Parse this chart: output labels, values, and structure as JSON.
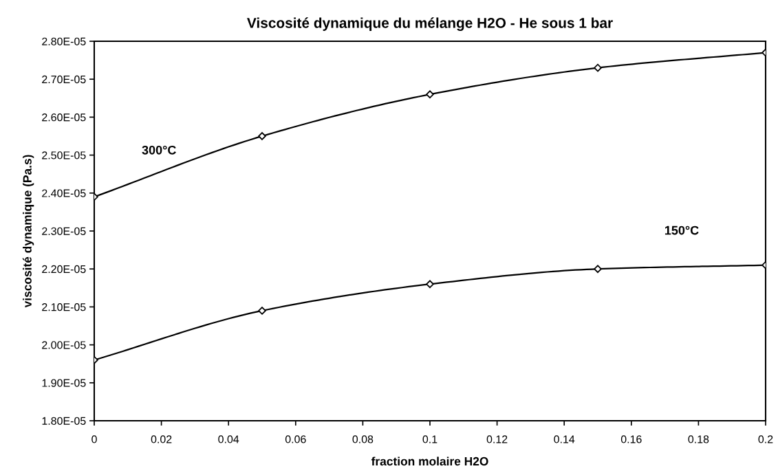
{
  "chart_data": {
    "type": "line",
    "title": "Viscosité dynamique du mélange H2O - He sous 1 bar",
    "xlabel": "fraction molaire H2O",
    "ylabel": "viscosité dynamique (Pa.s)",
    "x": [
      0,
      0.05,
      0.1,
      0.15,
      0.2
    ],
    "series": [
      {
        "name": "300°C",
        "color": "#000000",
        "values": [
          2.39e-05,
          2.55e-05,
          2.66e-05,
          2.73e-05,
          2.77e-05
        ]
      },
      {
        "name": "150°C",
        "color": "#000000",
        "values": [
          1.96e-05,
          2.09e-05,
          2.16e-05,
          2.2e-05,
          2.21e-05
        ]
      }
    ],
    "xlim": [
      0,
      0.2
    ],
    "xticks": [
      0,
      0.02,
      0.04,
      0.06,
      0.08,
      0.1,
      0.12,
      0.14,
      0.16,
      0.18,
      0.2
    ],
    "ylim": [
      1.8e-05,
      2.8e-05
    ],
    "yticks": [
      {
        "value": 1.8e-05,
        "label": "1.80E-05"
      },
      {
        "value": 1.9e-05,
        "label": "1.90E-05"
      },
      {
        "value": 2e-05,
        "label": "2.00E-05"
      },
      {
        "value": 2.1e-05,
        "label": "2.10E-05"
      },
      {
        "value": 2.2e-05,
        "label": "2.20E-05"
      },
      {
        "value": 2.3e-05,
        "label": "2.30E-05"
      },
      {
        "value": 2.4e-05,
        "label": "2.40E-05"
      },
      {
        "value": 2.5e-05,
        "label": "2.50E-05"
      },
      {
        "value": 2.6e-05,
        "label": "2.60E-05"
      },
      {
        "value": 2.7e-05,
        "label": "2.70E-05"
      },
      {
        "value": 2.8e-05,
        "label": "2.80E-05"
      }
    ],
    "grid": false,
    "legend": false,
    "marker": "diamond",
    "line_style": "solid"
  }
}
